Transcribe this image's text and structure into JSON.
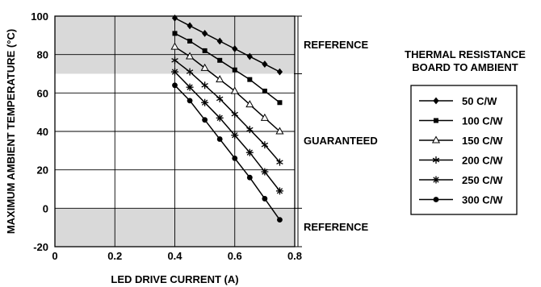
{
  "chart_data": {
    "type": "line",
    "xlabel": "LED DRIVE CURRENT (A)",
    "ylabel": "MAXIMUM AMBIENT TEMPERATURE (°C)",
    "xlim": [
      0,
      0.8
    ],
    "ylim": [
      -20,
      100
    ],
    "x_ticks": [
      "0",
      "0.2",
      "0.4",
      "0.6",
      "0.8"
    ],
    "y_ticks": [
      "-20",
      "0",
      "20",
      "40",
      "60",
      "80",
      "100"
    ],
    "grid": true,
    "reference_bands": [
      {
        "label": "REFERENCE",
        "from": 70,
        "to": 100,
        "color": "#d9d9d9"
      },
      {
        "label": "GUARANTEED",
        "from": 0,
        "to": 70,
        "color": "#ffffff"
      },
      {
        "label": "REFERENCE",
        "from": -20,
        "to": 0,
        "color": "#d9d9d9"
      }
    ],
    "legend": {
      "title_lines": [
        "THERMAL RESISTANCE",
        "BOARD TO AMBIENT"
      ],
      "placement": "right"
    },
    "x": [
      0.4,
      0.45,
      0.5,
      0.55,
      0.6,
      0.65,
      0.7,
      0.75
    ],
    "series": [
      {
        "name": "50 C/W",
        "marker": "diamond",
        "values": [
          99,
          95,
          91,
          87,
          83,
          79,
          75,
          71
        ]
      },
      {
        "name": "100 C/W",
        "marker": "square",
        "values": [
          91,
          87,
          82,
          77,
          72,
          67,
          61,
          55
        ]
      },
      {
        "name": "150 C/W",
        "marker": "triangle",
        "values": [
          84,
          79,
          73,
          67,
          61,
          54,
          47,
          40
        ]
      },
      {
        "name": "200 C/W",
        "marker": "star",
        "values": [
          77,
          71,
          64,
          57,
          49,
          41,
          33,
          24
        ]
      },
      {
        "name": "250 C/W",
        "marker": "asterisk",
        "values": [
          71,
          63,
          55,
          47,
          38,
          29,
          19,
          9
        ]
      },
      {
        "name": "300 C/W",
        "marker": "circle",
        "values": [
          64,
          56,
          46,
          36,
          26,
          16,
          5,
          -6
        ]
      }
    ]
  }
}
